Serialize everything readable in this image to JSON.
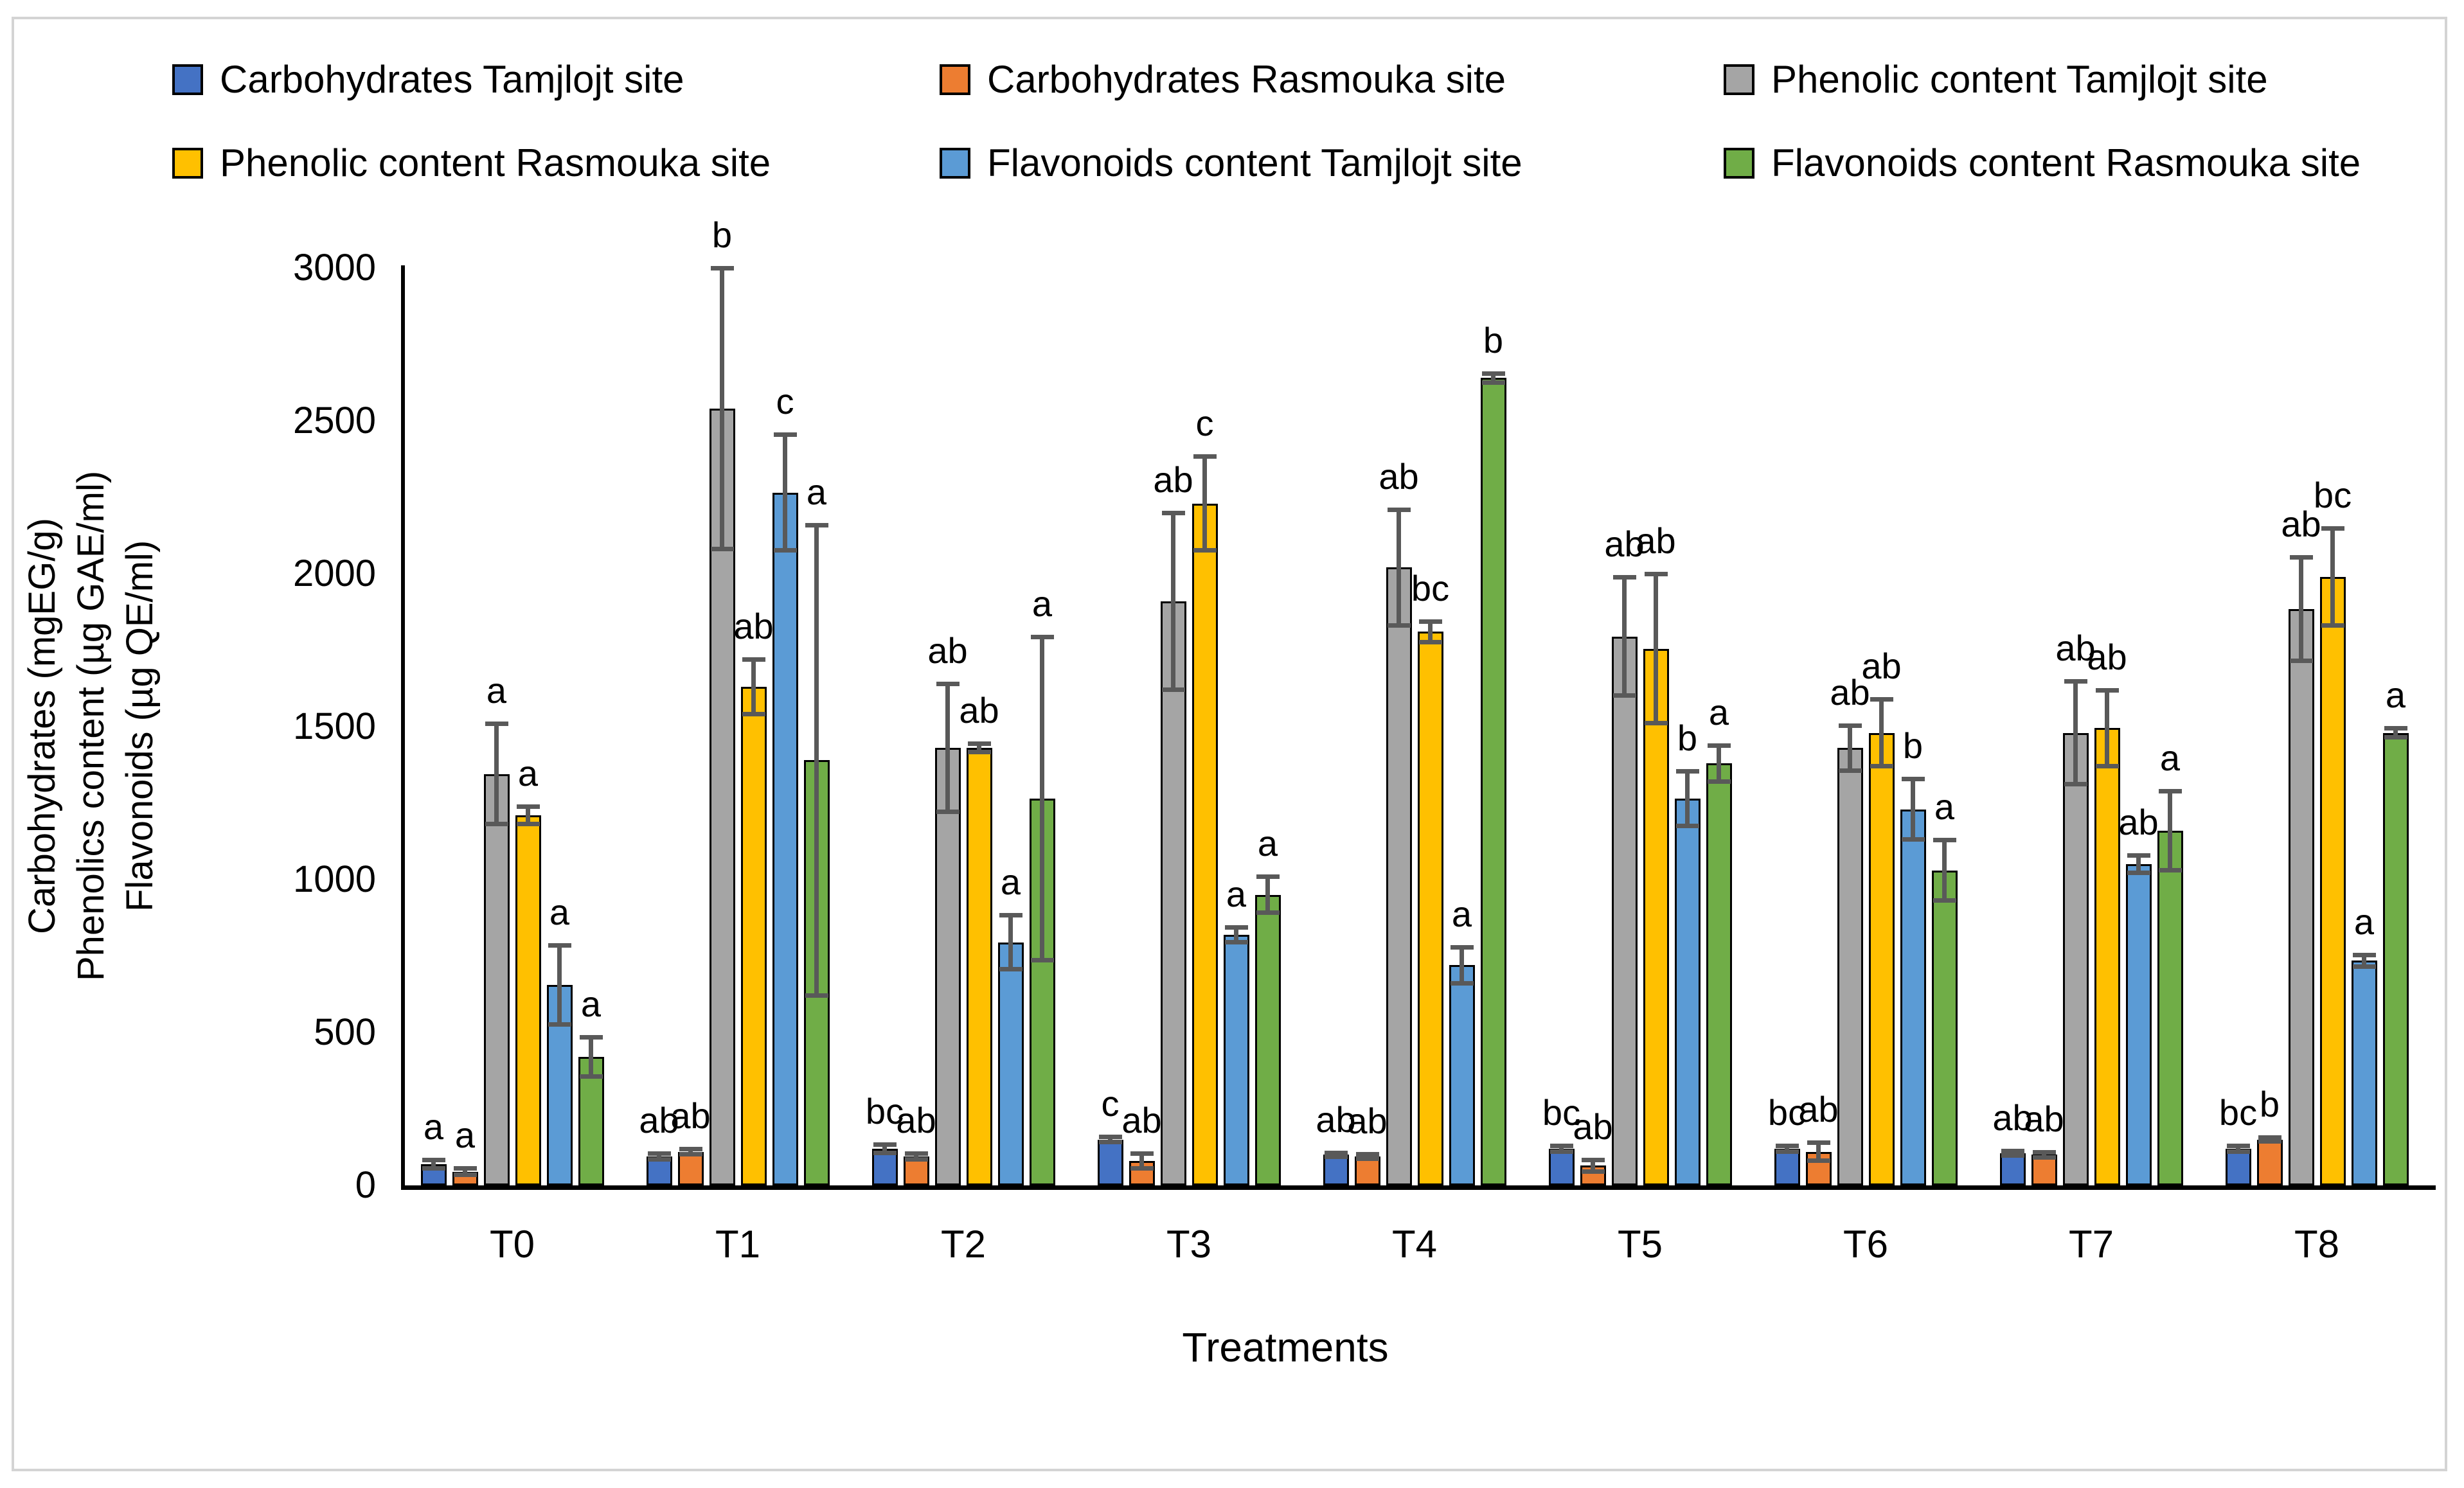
{
  "chart_data": {
    "type": "bar",
    "title": "",
    "xlabel": "Treatments",
    "ylabel_lines": [
      "Carbohydrates (mgEG/g)",
      "Phenolics content (µg GAE/ml)",
      "Flavonoids (µg QE/ml)"
    ],
    "categories": [
      "T0",
      "T1",
      "T2",
      "T3",
      "T4",
      "T5",
      "T6",
      "T7",
      "T8"
    ],
    "y_axis": {
      "min": 0,
      "max": 3000,
      "step": 500
    },
    "y_ticks": [
      "0",
      "500",
      "1000",
      "1500",
      "2000",
      "2500",
      "3000"
    ],
    "grid": "off",
    "legend_position": "top",
    "error_bar_color": "#595959",
    "series": [
      {
        "name": "Carbohydrates Tamjlojt site",
        "color": "#4472C4",
        "values": [
          70,
          95,
          120,
          150,
          100,
          120,
          120,
          105,
          120
        ],
        "errors": [
          15,
          10,
          15,
          10,
          8,
          10,
          10,
          8,
          10
        ],
        "letters": [
          "a",
          "ab",
          "bc",
          "c",
          "ab",
          "bc",
          "bc",
          "ab",
          "bc"
        ]
      },
      {
        "name": "Carbohydrates Rasmouka site",
        "color": "#ED7D31",
        "values": [
          45,
          110,
          95,
          80,
          95,
          65,
          110,
          100,
          150
        ],
        "errors": [
          12,
          10,
          10,
          25,
          8,
          20,
          30,
          10,
          8
        ],
        "letters": [
          "a",
          "ab",
          "ab",
          "ab",
          "ab",
          "ab",
          "ab",
          "ab",
          "b"
        ]
      },
      {
        "name": "Phenolic content Tamjlojt site",
        "color": "#A5A5A5",
        "values": [
          1345,
          2540,
          1430,
          1910,
          2020,
          1795,
          1430,
          1480,
          1885
        ],
        "errors": [
          165,
          460,
          210,
          290,
          190,
          195,
          75,
          170,
          170
        ],
        "letters": [
          "a",
          "b",
          "ab",
          "ab",
          "ab",
          "ab",
          "ab",
          "ab",
          "ab"
        ]
      },
      {
        "name": "Phenolic content Rasmouka site",
        "color": "#FFC000",
        "values": [
          1210,
          1630,
          1430,
          2230,
          1810,
          1755,
          1480,
          1495,
          1990
        ],
        "errors": [
          30,
          90,
          15,
          155,
          35,
          245,
          110,
          125,
          160
        ],
        "letters": [
          "a",
          "ab",
          "ab",
          "c",
          "bc",
          "ab",
          "ab",
          "ab",
          "bc"
        ]
      },
      {
        "name": "Flavonoids content Tamjlojt site",
        "color": "#5B9BD5",
        "values": [
          655,
          2265,
          795,
          820,
          720,
          1265,
          1230,
          1050,
          735
        ],
        "errors": [
          130,
          190,
          90,
          25,
          60,
          90,
          100,
          30,
          20
        ],
        "letters": [
          "a",
          "c",
          "a",
          "a",
          "a",
          "b",
          "b",
          "ab",
          "a"
        ]
      },
      {
        "name": "Flavonoids content Rasmouka site",
        "color": "#70AD47",
        "values": [
          420,
          1390,
          1265,
          950,
          2640,
          1380,
          1030,
          1160,
          1480
        ],
        "errors": [
          65,
          770,
          530,
          60,
          15,
          60,
          100,
          130,
          15
        ],
        "letters": [
          "a",
          "a",
          "a",
          "a",
          "b",
          "a",
          "a",
          "a",
          "a"
        ]
      }
    ]
  }
}
